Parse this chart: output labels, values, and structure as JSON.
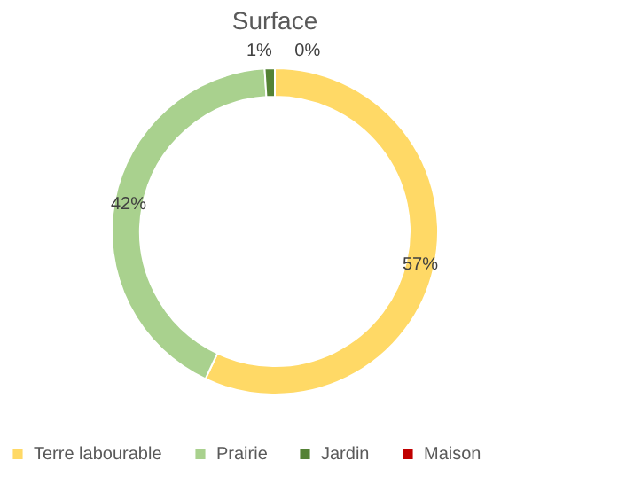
{
  "chart_data": {
    "type": "donut",
    "title": "Surface",
    "categories": [
      "Terre labourable",
      "Prairie",
      "Jardin",
      "Maison"
    ],
    "values": [
      57,
      42,
      1,
      0
    ],
    "colors": [
      "#ffd966",
      "#a9d18e",
      "#548235",
      "#c00000"
    ],
    "value_labels": [
      "57%",
      "42%",
      "1%",
      "0%"
    ],
    "legend": "bottom"
  }
}
